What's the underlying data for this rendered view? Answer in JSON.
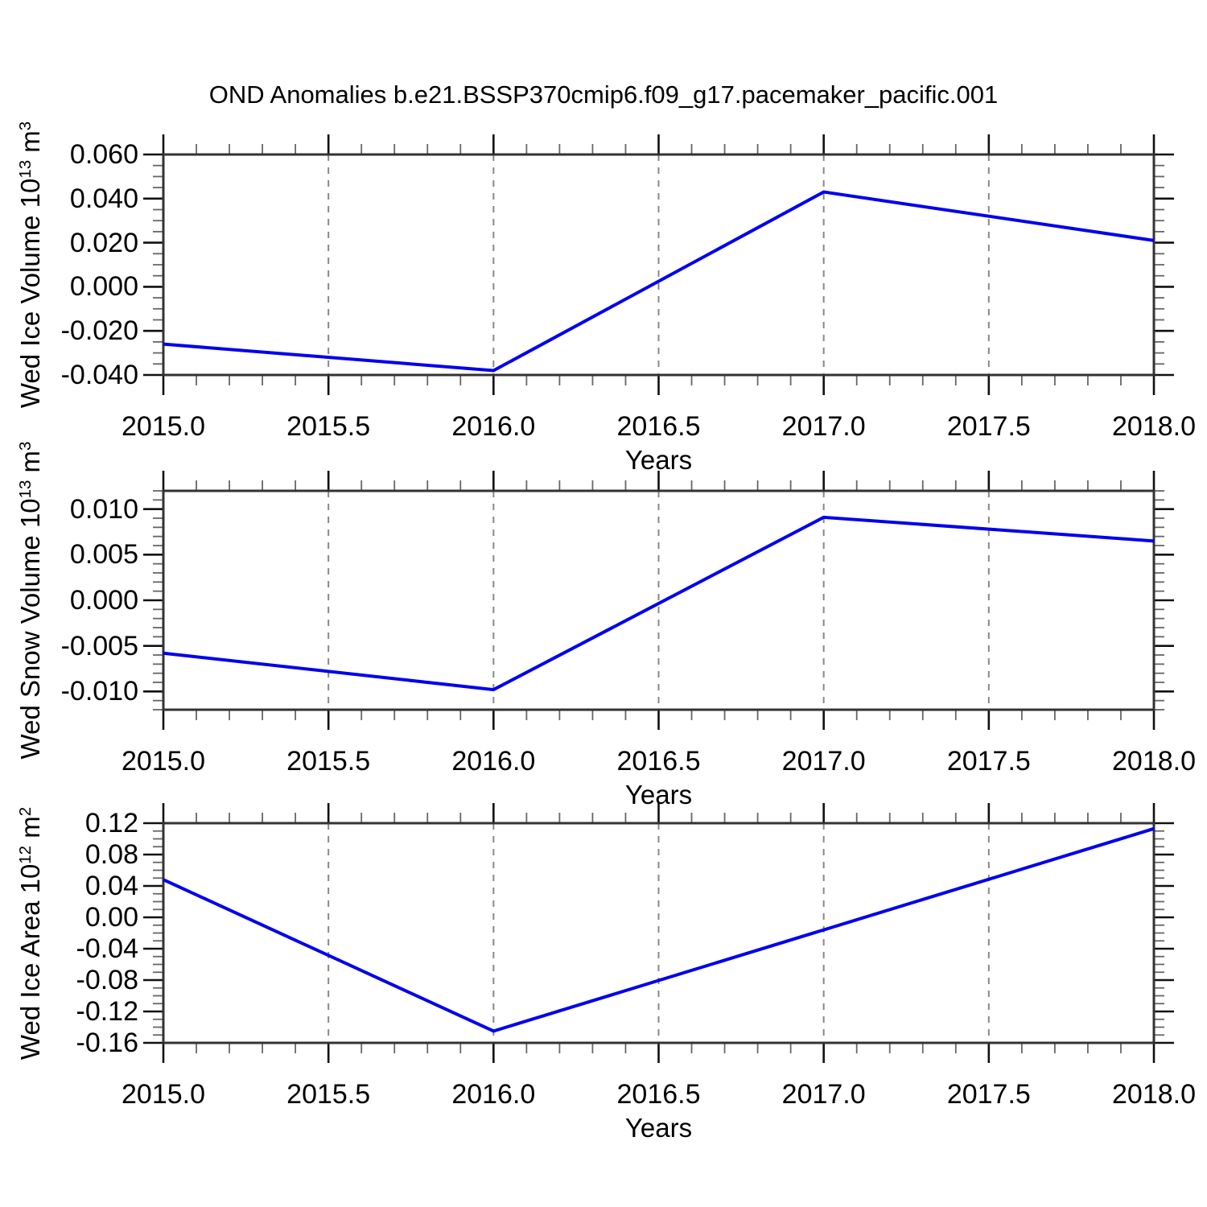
{
  "title": "OND Anomalies b.e21.BSSP370cmip6.f09_g17.pacemaker_pacific.001",
  "colors": {
    "line": "#0000EE",
    "frame": "#333333",
    "major_tick": "#111111",
    "minor_tick": "#666666",
    "gridline": "#888888",
    "text": "#000000",
    "background": "#ffffff"
  },
  "x_axis": {
    "label": "Years",
    "min": 2015.0,
    "max": 2018.0,
    "minor_step": 0.1,
    "ticks": [
      {
        "value": 2015.0,
        "label": "2015.0"
      },
      {
        "value": 2015.5,
        "label": "2015.5"
      },
      {
        "value": 2016.0,
        "label": "2016.0"
      },
      {
        "value": 2016.5,
        "label": "2016.5"
      },
      {
        "value": 2017.0,
        "label": "2017.0"
      },
      {
        "value": 2017.5,
        "label": "2017.5"
      },
      {
        "value": 2018.0,
        "label": "2018.0"
      }
    ],
    "gridlines_at": [
      2015.5,
      2016.0,
      2016.5,
      2017.0,
      2017.5
    ],
    "grid_style": "dashed"
  },
  "chart_data": [
    {
      "type": "line",
      "name": "wed-ice-volume",
      "ylabel": "Wed Ice Volume 10^13 m^3",
      "ylabel_segments": [
        {
          "text": "Wed Ice Volume 10"
        },
        {
          "text": "13",
          "sup": true
        },
        {
          "text": " m"
        },
        {
          "text": "3",
          "sup": true
        }
      ],
      "xlabel": "Years",
      "x": [
        2015.0,
        2016.0,
        2017.0,
        2018.0
      ],
      "values": [
        -0.026,
        -0.038,
        0.043,
        0.021
      ],
      "ylim": [
        -0.04,
        0.06
      ],
      "yticks": [
        {
          "value": 0.06,
          "label": "0.060"
        },
        {
          "value": 0.04,
          "label": "0.040"
        },
        {
          "value": 0.02,
          "label": "0.020"
        },
        {
          "value": 0.0,
          "label": "0.000"
        },
        {
          "value": -0.02,
          "label": "-0.020"
        },
        {
          "value": -0.04,
          "label": "-0.040"
        }
      ],
      "yminor_step": 0.005,
      "legend": "none",
      "grid_vertical_only": true
    },
    {
      "type": "line",
      "name": "wed-snow-volume",
      "ylabel": "Wed Snow Volume 10^13 m^3",
      "ylabel_segments": [
        {
          "text": "Wed Snow Volume 10"
        },
        {
          "text": "13",
          "sup": true
        },
        {
          "text": " m"
        },
        {
          "text": "3",
          "sup": true
        }
      ],
      "xlabel": "Years",
      "x": [
        2015.0,
        2016.0,
        2017.0,
        2018.0
      ],
      "values": [
        -0.0058,
        -0.0098,
        0.0091,
        0.0065
      ],
      "ylim": [
        -0.012,
        0.012
      ],
      "yticks": [
        {
          "value": 0.01,
          "label": "0.010"
        },
        {
          "value": 0.005,
          "label": "0.005"
        },
        {
          "value": 0.0,
          "label": "0.000"
        },
        {
          "value": -0.005,
          "label": "-0.005"
        },
        {
          "value": -0.01,
          "label": "-0.010"
        }
      ],
      "yminor_step": 0.001,
      "legend": "none",
      "grid_vertical_only": true
    },
    {
      "type": "line",
      "name": "wed-ice-area",
      "ylabel": "Wed Ice Area 10^12 m^2",
      "ylabel_segments": [
        {
          "text": "Wed Ice Area 10"
        },
        {
          "text": "12",
          "sup": true
        },
        {
          "text": " m"
        },
        {
          "text": "2",
          "sup": true
        }
      ],
      "xlabel": "Years",
      "x": [
        2015.0,
        2016.0,
        2017.0,
        2018.0
      ],
      "values": [
        0.048,
        -0.145,
        -0.016,
        0.113
      ],
      "ylim": [
        -0.16,
        0.12
      ],
      "yticks": [
        {
          "value": 0.12,
          "label": "0.12"
        },
        {
          "value": 0.08,
          "label": "0.08"
        },
        {
          "value": 0.04,
          "label": "0.04"
        },
        {
          "value": 0.0,
          "label": "0.00"
        },
        {
          "value": -0.04,
          "label": "-0.04"
        },
        {
          "value": -0.08,
          "label": "-0.08"
        },
        {
          "value": -0.12,
          "label": "-0.12"
        },
        {
          "value": -0.16,
          "label": "-0.16"
        }
      ],
      "yminor_step": 0.01,
      "legend": "none",
      "grid_vertical_only": true
    }
  ]
}
